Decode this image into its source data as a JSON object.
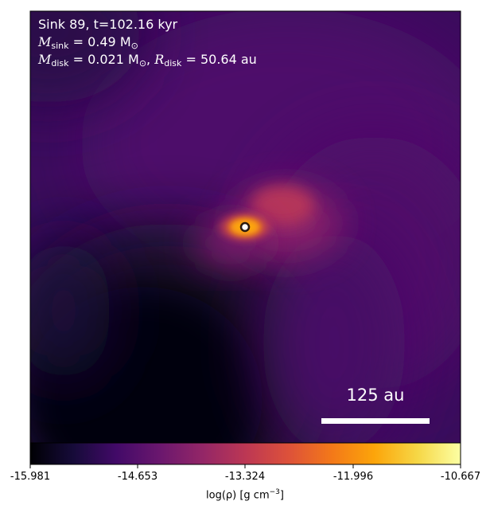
{
  "panel": {
    "title_line": "Sink 89, t=102.16 kyr",
    "sink_mass_symbol": "M",
    "sink_mass_sub": "sink",
    "sink_mass_value": " = 0.49 M",
    "sink_mass_unit_sub": "⊙",
    "disk_mass_symbol": "M",
    "disk_mass_sub": "disk",
    "disk_mass_value": " = 0.021 M",
    "disk_mass_unit_sub": "⊙",
    "disk_radius_symbol": "R",
    "disk_radius_sub": "disk",
    "disk_radius_value": " = 50.64 au"
  },
  "scalebar": {
    "label": "125 au"
  },
  "colorbar": {
    "colormap": "inferno",
    "ticks": [
      "-15.981",
      "-14.653",
      "-13.324",
      "-11.996",
      "-10.667"
    ],
    "label_main": "log(ρ) [g cm",
    "label_exp": "−3",
    "label_end": "]"
  },
  "sink_marker": {
    "fill": "#ffffff",
    "edge": "#2b1a10"
  }
}
